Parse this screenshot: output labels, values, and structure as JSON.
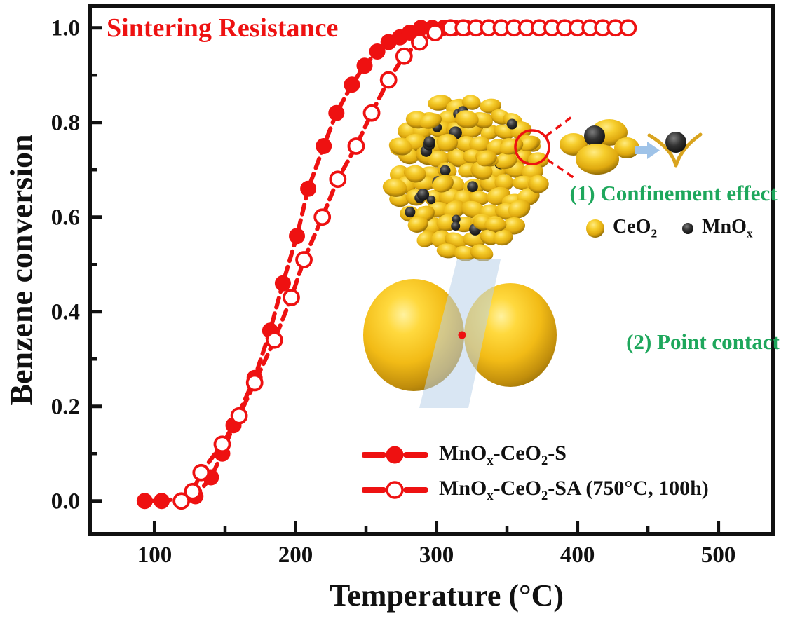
{
  "chart_data": {
    "type": "line",
    "title": "Sintering Resistance",
    "xlabel": "Temperature (°C)",
    "ylabel": "Benzene conversion",
    "xlim": [
      54,
      539
    ],
    "ylim": [
      -0.07,
      1.047
    ],
    "x_ticks": [
      100,
      200,
      300,
      400,
      500
    ],
    "x_tick_labels": [
      "100",
      "200",
      "300",
      "400",
      "500"
    ],
    "x_minor_ticks": [
      150,
      250,
      350,
      450
    ],
    "y_ticks": [
      0.0,
      0.2,
      0.4,
      0.6,
      0.8,
      1.0
    ],
    "y_tick_labels": [
      "0.0",
      "0.2",
      "0.4",
      "0.6",
      "0.8",
      "1.0"
    ],
    "y_minor_ticks": [
      0.1,
      0.3,
      0.5,
      0.7,
      0.9
    ],
    "grid": false,
    "legend_position": "inside lower right",
    "series": [
      {
        "name": "MnOx-CeO2-S",
        "marker": "filled-circle",
        "line": "dashed",
        "color": "#ee1111",
        "points": [
          [
            93,
            0.0
          ],
          [
            105,
            0.0
          ],
          [
            129,
            0.01
          ],
          [
            140,
            0.05
          ],
          [
            148,
            0.1
          ],
          [
            156,
            0.16
          ],
          [
            171,
            0.26
          ],
          [
            182,
            0.36
          ],
          [
            191,
            0.46
          ],
          [
            201,
            0.56
          ],
          [
            209,
            0.66
          ],
          [
            220,
            0.75
          ],
          [
            229,
            0.82
          ],
          [
            240,
            0.88
          ],
          [
            249,
            0.92
          ],
          [
            258,
            0.95
          ],
          [
            266,
            0.97
          ],
          [
            274,
            0.98
          ],
          [
            281,
            0.99
          ],
          [
            289,
            1.0
          ],
          [
            297,
            1.0
          ],
          [
            305,
            1.0
          ],
          [
            313,
            1.0
          ],
          [
            321,
            1.0
          ],
          [
            329,
            1.0
          ],
          [
            337,
            1.0
          ],
          [
            345,
            1.0
          ]
        ]
      },
      {
        "name": "MnOx-CeO2-SA (750°C, 100h)",
        "marker": "open-circle",
        "line": "dashed",
        "color": "#ee1111",
        "points": [
          [
            119,
            0.0
          ],
          [
            127,
            0.02
          ],
          [
            133,
            0.06
          ],
          [
            148,
            0.12
          ],
          [
            160,
            0.18
          ],
          [
            171,
            0.25
          ],
          [
            185,
            0.34
          ],
          [
            197,
            0.43
          ],
          [
            206,
            0.51
          ],
          [
            219,
            0.6
          ],
          [
            230,
            0.68
          ],
          [
            243,
            0.75
          ],
          [
            254,
            0.82
          ],
          [
            266,
            0.89
          ],
          [
            277,
            0.94
          ],
          [
            288,
            0.97
          ],
          [
            299,
            0.99
          ],
          [
            310,
            1.0
          ],
          [
            319,
            1.0
          ],
          [
            328,
            1.0
          ],
          [
            337,
            1.0
          ],
          [
            346,
            1.0
          ],
          [
            355,
            1.0
          ],
          [
            364,
            1.0
          ],
          [
            373,
            1.0
          ],
          [
            382,
            1.0
          ],
          [
            391,
            1.0
          ],
          [
            400,
            1.0
          ],
          [
            409,
            1.0
          ],
          [
            418,
            1.0
          ],
          [
            427,
            1.0
          ],
          [
            436,
            1.0
          ]
        ]
      }
    ]
  },
  "legend": {
    "items": [
      {
        "plain": "MnOx-CeO2-S",
        "marker": "filled-circle",
        "segments": [
          {
            "t": "MnO"
          },
          {
            "t": "x",
            "sub": true
          },
          {
            "t": "-CeO"
          },
          {
            "t": "2",
            "sub": true
          },
          {
            "t": "-S"
          }
        ]
      },
      {
        "plain": "MnOx-CeO2-SA (750°C, 100h)",
        "marker": "open-circle",
        "segments": [
          {
            "t": "MnO"
          },
          {
            "t": "x",
            "sub": true
          },
          {
            "t": "-CeO"
          },
          {
            "t": "2",
            "sub": true
          },
          {
            "t": "-SA (750°C, 100h)"
          }
        ]
      }
    ]
  },
  "insets": {
    "confinement": {
      "label": "(1) Confinement effect",
      "legend": [
        {
          "icon": "gold-sphere-icon",
          "plain": "CeO2",
          "segments": [
            {
              "t": "CeO"
            },
            {
              "t": "2",
              "sub": true
            }
          ]
        },
        {
          "icon": "black-sphere-icon",
          "plain": "MnOx",
          "segments": [
            {
              "t": "MnO"
            },
            {
              "t": "x",
              "sub": true
            }
          ]
        }
      ]
    },
    "point_contact": {
      "label": "(2) Point contact"
    }
  },
  "colors": {
    "accent_red": "#ee1111",
    "annotation_green": "#1ea75c",
    "axis_black": "#111111",
    "gold": "#f2c11e",
    "light_blue": "#b9d1e9",
    "background": "#ffffff"
  }
}
